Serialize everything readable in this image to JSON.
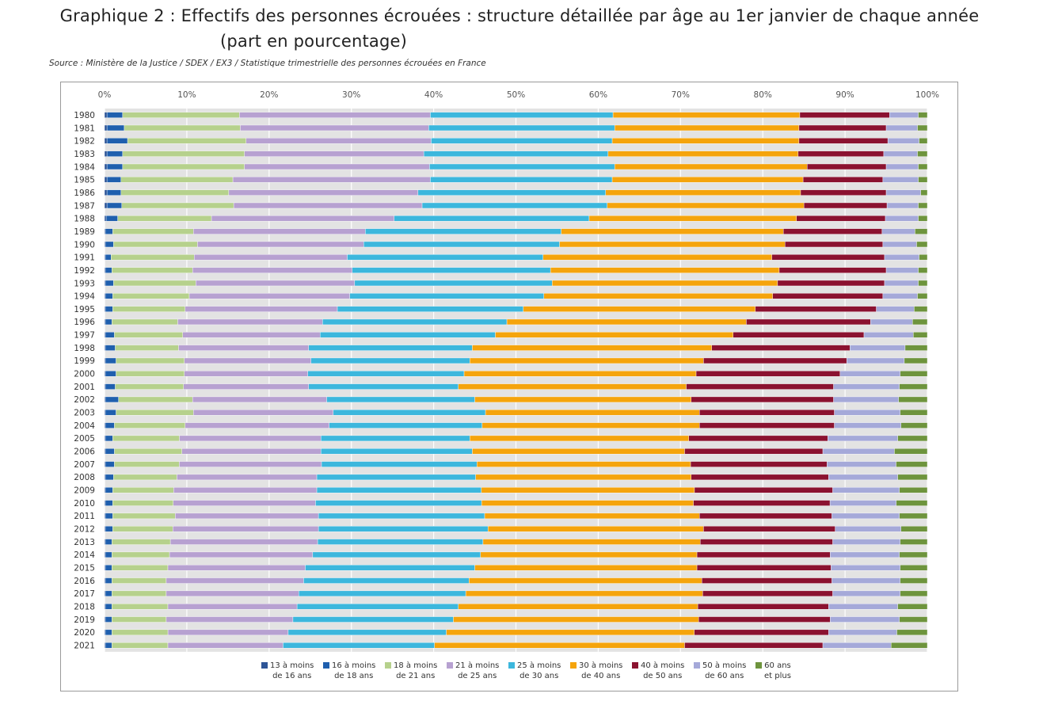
{
  "title_line1": "Graphique 2 : Effectifs des personnes écrouées : structure détaillée par âge au 1er janvier de chaque année",
  "title_line2": "(part en pourcentage)",
  "source": "Source : Ministère de la Justice / SDEX / EX3 / Statistique trimestrielle des personnes écrouées en France",
  "chart_data": {
    "type": "bar",
    "orientation": "horizontal",
    "stacked": "percent",
    "xlim": [
      0,
      100
    ],
    "x_ticks": [
      "0%",
      "10%",
      "20%",
      "30%",
      "40%",
      "50%",
      "60%",
      "70%",
      "80%",
      "90%",
      "100%"
    ],
    "grid": true,
    "legend_position": "bottom",
    "categories": [
      "1980",
      "1981",
      "1982",
      "1983",
      "1984",
      "1985",
      "1986",
      "1987",
      "1988",
      "1989",
      "1990",
      "1991",
      "1992",
      "1993",
      "1994",
      "1995",
      "1996",
      "1997",
      "1998",
      "1999",
      "2000",
      "2001",
      "2002",
      "2003",
      "2004",
      "2005",
      "2006",
      "2007",
      "2008",
      "2009",
      "2010",
      "2011",
      "2012",
      "2013",
      "2014",
      "2015",
      "2016",
      "2017",
      "2018",
      "2019",
      "2020",
      "2021"
    ],
    "series": [
      {
        "name": "13 à moins de 16 ans",
        "legend_lines": [
          "13 à moins",
          "de 16 ans"
        ],
        "color": "#2e5597",
        "values": [
          0.3,
          0.3,
          0.3,
          0.3,
          0.3,
          0.3,
          0.3,
          0.3,
          0.2,
          0.1,
          0.1,
          0.1,
          0.1,
          0.1,
          0.1,
          0.1,
          0.1,
          0.1,
          0.1,
          0.1,
          0.1,
          0.1,
          0.1,
          0.1,
          0.1,
          0.1,
          0.1,
          0.1,
          0.1,
          0.1,
          0.1,
          0.1,
          0.1,
          0.1,
          0.1,
          0.1,
          0.1,
          0.1,
          0.1,
          0.1,
          0.1,
          0.1
        ]
      },
      {
        "name": "16 à moins de 18 ans",
        "legend_lines": [
          "16 à moins",
          "de 18 ans"
        ],
        "color": "#1f5fae",
        "values": [
          1.9,
          2.1,
          2.5,
          1.9,
          1.9,
          1.7,
          1.7,
          1.8,
          1.4,
          0.9,
          1.0,
          0.7,
          0.8,
          1.0,
          0.9,
          0.9,
          0.8,
          1.1,
          1.2,
          1.3,
          1.3,
          1.2,
          1.6,
          1.3,
          1.1,
          0.9,
          1.1,
          1.1,
          1.0,
          0.9,
          0.9,
          0.9,
          0.9,
          0.8,
          0.8,
          0.8,
          0.8,
          0.8,
          0.8,
          0.8,
          0.8,
          0.8
        ]
      },
      {
        "name": "18 à moins de 21 ans",
        "legend_lines": [
          "18 à moins",
          "de 21 ans"
        ],
        "color": "#b6d18c",
        "values": [
          14.2,
          14.1,
          14.4,
          14.8,
          14.8,
          13.6,
          13.1,
          13.6,
          11.4,
          9.8,
          10.2,
          10.1,
          9.8,
          10.0,
          9.3,
          8.8,
          8.0,
          8.3,
          7.7,
          8.3,
          8.3,
          8.3,
          9.0,
          9.4,
          8.6,
          8.1,
          8.2,
          7.9,
          7.7,
          7.4,
          7.4,
          7.6,
          7.3,
          7.1,
          7.0,
          6.8,
          6.6,
          6.6,
          6.8,
          6.6,
          6.8,
          6.8
        ]
      },
      {
        "name": "21 à moins de 25 ans",
        "legend_lines": [
          "21 à moins",
          "de 25 ans"
        ],
        "color": "#b7a1d1",
        "values": [
          23.2,
          22.9,
          22.5,
          21.8,
          22.5,
          24.0,
          23.0,
          22.9,
          22.2,
          20.9,
          20.2,
          18.6,
          19.4,
          19.3,
          19.5,
          18.5,
          17.6,
          16.7,
          15.8,
          15.4,
          15.0,
          15.2,
          16.3,
          17.0,
          17.5,
          17.2,
          16.9,
          17.3,
          17.0,
          17.4,
          17.4,
          17.4,
          17.7,
          17.9,
          17.4,
          16.7,
          16.7,
          16.1,
          15.7,
          15.4,
          14.6,
          14.0
        ]
      },
      {
        "name": "25 à moins de 30 ans",
        "legend_lines": [
          "25 à moins",
          "de 30 ans"
        ],
        "color": "#3cb7dd",
        "values": [
          22.2,
          22.6,
          22.0,
          22.4,
          22.5,
          22.1,
          22.8,
          22.5,
          23.7,
          23.8,
          23.8,
          23.8,
          24.1,
          24.0,
          23.6,
          22.6,
          22.4,
          21.3,
          19.9,
          19.3,
          19.0,
          18.2,
          18.0,
          18.5,
          18.6,
          18.1,
          18.4,
          18.9,
          19.3,
          20.0,
          20.3,
          20.2,
          20.6,
          20.1,
          20.4,
          20.6,
          20.1,
          20.3,
          19.6,
          19.5,
          19.2,
          18.4
        ]
      },
      {
        "name": "30 à moins de 40 ans",
        "legend_lines": [
          "30 à moins",
          "de 40 ans"
        ],
        "color": "#f5a40c",
        "values": [
          22.7,
          22.4,
          22.7,
          23.1,
          23.4,
          23.2,
          23.7,
          23.9,
          25.2,
          27.0,
          27.4,
          27.8,
          27.8,
          27.4,
          27.8,
          28.2,
          29.1,
          28.9,
          29.1,
          28.4,
          28.2,
          27.7,
          26.3,
          26.0,
          26.4,
          26.6,
          25.8,
          26.0,
          26.2,
          25.9,
          25.9,
          26.1,
          26.2,
          26.4,
          26.3,
          27.0,
          28.3,
          28.8,
          29.1,
          29.8,
          30.1,
          30.4
        ]
      },
      {
        "name": "40 à moins de 50 ans",
        "legend_lines": [
          "40 à moins",
          "de 50 ans"
        ],
        "color": "#8b1230",
        "values": [
          10.9,
          10.6,
          10.8,
          10.4,
          9.6,
          9.7,
          10.4,
          10.1,
          10.8,
          12.0,
          11.9,
          13.7,
          13.0,
          13.0,
          13.4,
          14.7,
          15.1,
          15.9,
          16.8,
          17.4,
          17.5,
          17.9,
          17.3,
          16.4,
          16.4,
          16.9,
          16.8,
          16.6,
          16.7,
          16.8,
          16.7,
          16.1,
          16.0,
          16.1,
          16.2,
          16.3,
          15.8,
          15.8,
          15.9,
          16.0,
          16.3,
          16.8
        ]
      },
      {
        "name": "50 à moins de 60 ans",
        "legend_lines": [
          "50 à moins",
          "de 60 ans"
        ],
        "color": "#a5a9d9",
        "values": [
          3.5,
          3.8,
          3.8,
          4.1,
          3.9,
          4.3,
          4.2,
          3.8,
          4.0,
          4.0,
          4.1,
          4.2,
          3.9,
          4.1,
          4.2,
          4.6,
          5.1,
          6.0,
          6.7,
          7.0,
          7.3,
          8.0,
          7.9,
          8.0,
          8.1,
          8.5,
          8.7,
          8.4,
          8.4,
          8.1,
          8.1,
          8.2,
          8.0,
          8.2,
          8.4,
          8.4,
          8.3,
          8.2,
          8.4,
          8.4,
          8.3,
          8.3
        ]
      },
      {
        "name": "60 ans et plus",
        "legend_lines": [
          "60 ans",
          "et plus"
        ],
        "color": "#6e943d",
        "values": [
          1.1,
          1.2,
          1.0,
          1.2,
          1.1,
          1.1,
          0.8,
          1.1,
          1.1,
          1.5,
          1.3,
          1.0,
          1.1,
          1.1,
          1.2,
          1.6,
          1.8,
          1.7,
          2.7,
          2.8,
          3.3,
          3.4,
          3.5,
          3.3,
          3.2,
          3.6,
          4.0,
          3.8,
          3.6,
          3.4,
          3.8,
          3.4,
          3.2,
          3.3,
          3.4,
          3.3,
          3.3,
          3.3,
          3.6,
          3.4,
          3.7,
          4.4
        ]
      }
    ]
  }
}
